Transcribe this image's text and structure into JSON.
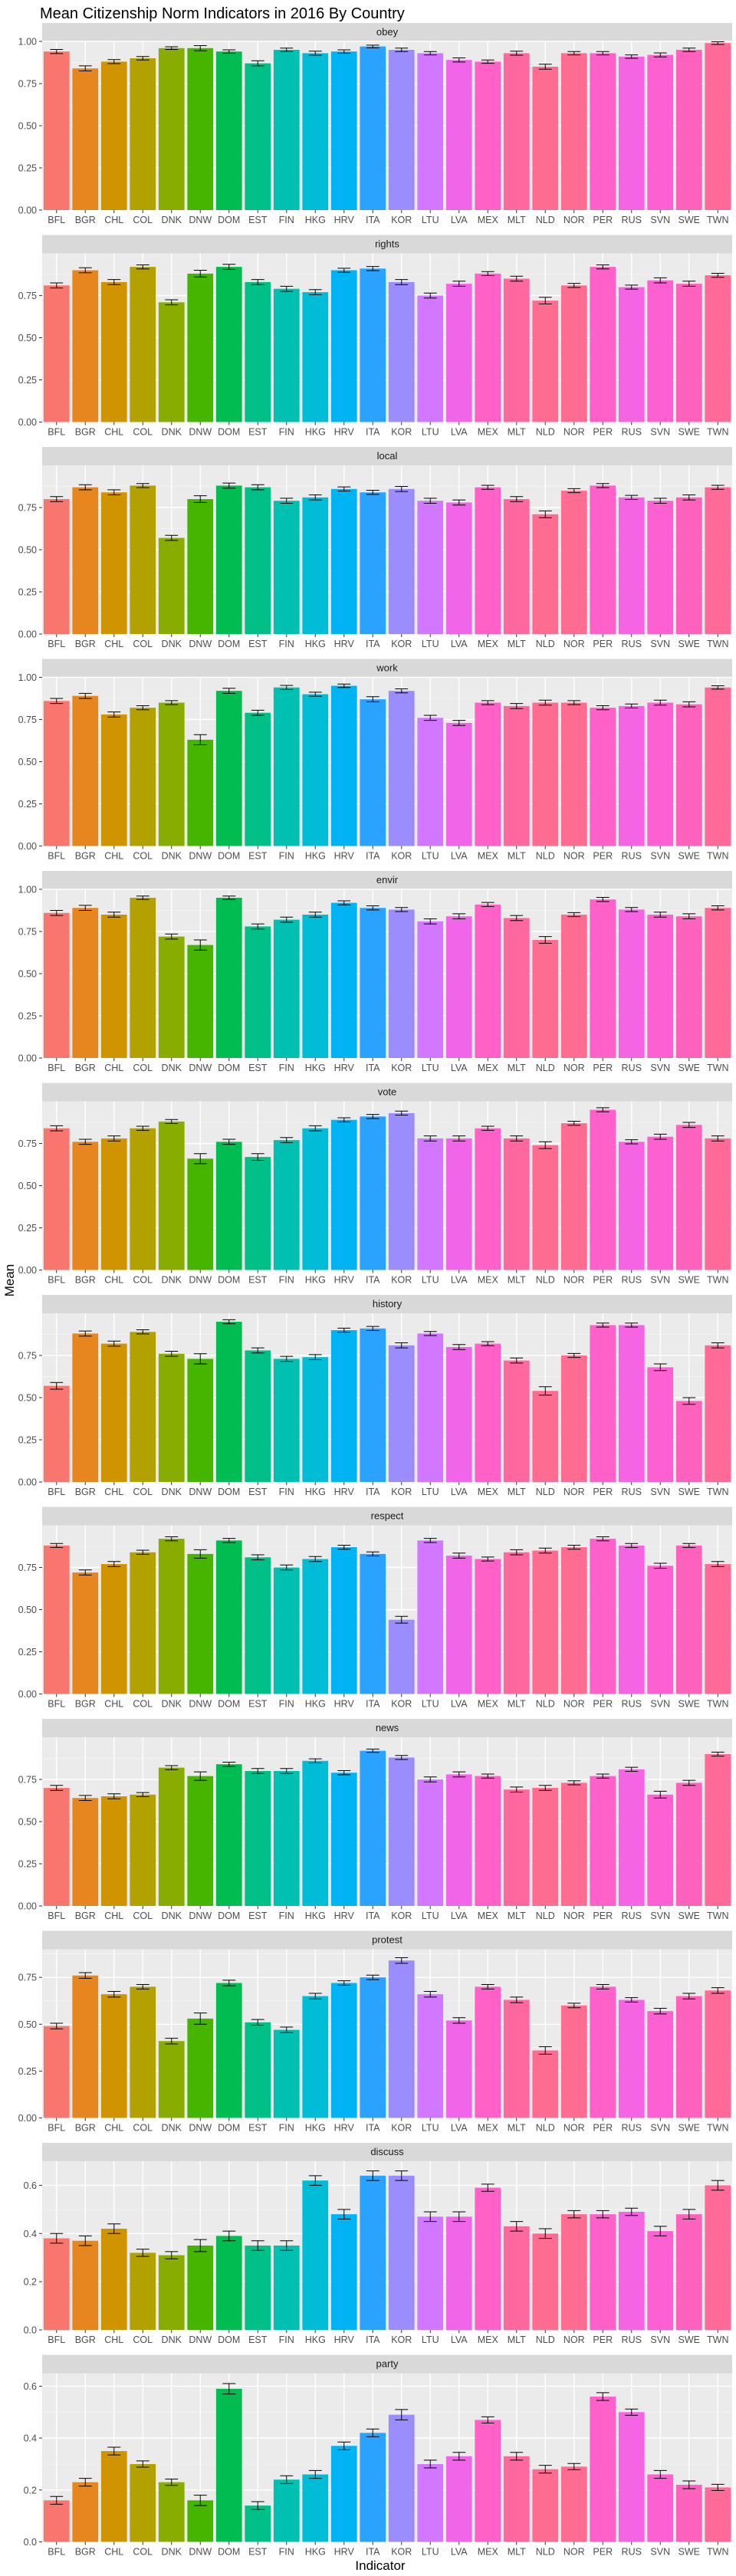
{
  "chart_data": {
    "type": "bar",
    "title": "Mean Citizenship Norm Indicators in 2016 By Country",
    "xlabel": "Indicator",
    "ylabel": "Mean",
    "grid": true,
    "legend": "none",
    "error_bars": true,
    "categories": [
      "BFL",
      "BGR",
      "CHL",
      "COL",
      "DNK",
      "DNW",
      "DOM",
      "EST",
      "FIN",
      "HKG",
      "HRV",
      "ITA",
      "KOR",
      "LTU",
      "LVA",
      "MEX",
      "MLT",
      "NLD",
      "NOR",
      "PER",
      "RUS",
      "SVN",
      "SWE",
      "TWN"
    ],
    "category_colors": [
      "#F8766D",
      "#E7851E",
      "#D09400",
      "#B2A100",
      "#89AC00",
      "#45B500",
      "#00BC51",
      "#00C087",
      "#00C0B2",
      "#00BCD6",
      "#00B3F2",
      "#29A3FF",
      "#9C8DFF",
      "#D277FF",
      "#F166E8",
      "#FF61C7",
      "#FF689E",
      "#FF6C91",
      "#FF6C91",
      "#FF61C9",
      "#F564E3",
      "#FD61D1",
      "#FF62BC",
      "#FF6A98"
    ],
    "panels": [
      {
        "label": "obey",
        "ylim": [
          0,
          1.0
        ],
        "yticks": [
          "0.00",
          "0.25",
          "0.50",
          "0.75",
          "1.00"
        ],
        "tick_values": [
          0,
          0.25,
          0.5,
          0.75,
          1.0
        ],
        "values": [
          0.94,
          0.84,
          0.88,
          0.9,
          0.96,
          0.96,
          0.94,
          0.87,
          0.95,
          0.93,
          0.94,
          0.97,
          0.95,
          0.93,
          0.89,
          0.88,
          0.93,
          0.85,
          0.93,
          0.93,
          0.91,
          0.92,
          0.95,
          0.99
        ],
        "errors": [
          0.012,
          0.015,
          0.012,
          0.01,
          0.008,
          0.015,
          0.01,
          0.015,
          0.01,
          0.012,
          0.01,
          0.008,
          0.01,
          0.01,
          0.012,
          0.01,
          0.012,
          0.015,
          0.01,
          0.01,
          0.01,
          0.012,
          0.01,
          0.008
        ]
      },
      {
        "label": "rights",
        "ylim": [
          0,
          1.0
        ],
        "yticks": [
          "0.00",
          "0.25",
          "0.50",
          "0.75"
        ],
        "tick_values": [
          0,
          0.25,
          0.5,
          0.75
        ],
        "values": [
          0.81,
          0.9,
          0.83,
          0.92,
          0.71,
          0.88,
          0.92,
          0.83,
          0.79,
          0.77,
          0.9,
          0.91,
          0.83,
          0.75,
          0.82,
          0.88,
          0.85,
          0.72,
          0.81,
          0.92,
          0.8,
          0.84,
          0.82,
          0.87
        ],
        "errors": [
          0.015,
          0.015,
          0.015,
          0.012,
          0.015,
          0.02,
          0.015,
          0.015,
          0.015,
          0.015,
          0.012,
          0.012,
          0.015,
          0.015,
          0.015,
          0.012,
          0.015,
          0.02,
          0.012,
          0.012,
          0.012,
          0.015,
          0.015,
          0.012
        ]
      },
      {
        "label": "local",
        "ylim": [
          0,
          1.0
        ],
        "yticks": [
          "0.00",
          "0.25",
          "0.50",
          "0.75"
        ],
        "tick_values": [
          0,
          0.25,
          0.5,
          0.75
        ],
        "values": [
          0.8,
          0.87,
          0.84,
          0.88,
          0.57,
          0.8,
          0.88,
          0.87,
          0.79,
          0.81,
          0.86,
          0.84,
          0.86,
          0.79,
          0.78,
          0.87,
          0.8,
          0.71,
          0.85,
          0.88,
          0.81,
          0.79,
          0.81,
          0.87
        ],
        "errors": [
          0.015,
          0.015,
          0.015,
          0.012,
          0.015,
          0.02,
          0.015,
          0.015,
          0.015,
          0.015,
          0.012,
          0.012,
          0.015,
          0.015,
          0.015,
          0.012,
          0.015,
          0.02,
          0.012,
          0.012,
          0.012,
          0.015,
          0.015,
          0.012
        ]
      },
      {
        "label": "work",
        "ylim": [
          0,
          1.0
        ],
        "yticks": [
          "0.00",
          "0.25",
          "0.50",
          "0.75",
          "1.00"
        ],
        "tick_values": [
          0,
          0.25,
          0.5,
          0.75,
          1.0
        ],
        "values": [
          0.86,
          0.89,
          0.78,
          0.82,
          0.85,
          0.63,
          0.92,
          0.79,
          0.94,
          0.9,
          0.95,
          0.87,
          0.92,
          0.76,
          0.73,
          0.85,
          0.83,
          0.85,
          0.85,
          0.82,
          0.83,
          0.85,
          0.84,
          0.94
        ],
        "errors": [
          0.015,
          0.015,
          0.015,
          0.012,
          0.012,
          0.03,
          0.015,
          0.015,
          0.012,
          0.012,
          0.01,
          0.015,
          0.012,
          0.015,
          0.015,
          0.012,
          0.015,
          0.015,
          0.012,
          0.012,
          0.012,
          0.015,
          0.015,
          0.01
        ]
      },
      {
        "label": "envir",
        "ylim": [
          0,
          1.0
        ],
        "yticks": [
          "0.00",
          "0.25",
          "0.50",
          "0.75",
          "1.00"
        ],
        "tick_values": [
          0,
          0.25,
          0.5,
          0.75,
          1.0
        ],
        "values": [
          0.86,
          0.89,
          0.85,
          0.95,
          0.72,
          0.67,
          0.95,
          0.78,
          0.82,
          0.85,
          0.92,
          0.89,
          0.88,
          0.81,
          0.84,
          0.91,
          0.83,
          0.7,
          0.85,
          0.94,
          0.88,
          0.85,
          0.84,
          0.89
        ],
        "errors": [
          0.015,
          0.015,
          0.015,
          0.01,
          0.015,
          0.03,
          0.01,
          0.015,
          0.015,
          0.015,
          0.012,
          0.012,
          0.012,
          0.015,
          0.015,
          0.012,
          0.015,
          0.02,
          0.012,
          0.012,
          0.012,
          0.015,
          0.015,
          0.012
        ]
      },
      {
        "label": "vote",
        "ylim": [
          0,
          1.0
        ],
        "yticks": [
          "0.00",
          "0.25",
          "0.50",
          "0.75"
        ],
        "tick_values": [
          0,
          0.25,
          0.5,
          0.75
        ],
        "values": [
          0.84,
          0.76,
          0.78,
          0.84,
          0.88,
          0.66,
          0.76,
          0.67,
          0.77,
          0.84,
          0.89,
          0.91,
          0.93,
          0.78,
          0.78,
          0.84,
          0.78,
          0.74,
          0.87,
          0.95,
          0.76,
          0.79,
          0.86,
          0.78
        ],
        "errors": [
          0.015,
          0.015,
          0.015,
          0.012,
          0.012,
          0.03,
          0.015,
          0.02,
          0.015,
          0.015,
          0.012,
          0.012,
          0.012,
          0.015,
          0.015,
          0.012,
          0.015,
          0.02,
          0.012,
          0.012,
          0.012,
          0.015,
          0.015,
          0.015
        ]
      },
      {
        "label": "history",
        "ylim": [
          0,
          1.0
        ],
        "yticks": [
          "0.00",
          "0.25",
          "0.50",
          "0.75"
        ],
        "tick_values": [
          0,
          0.25,
          0.5,
          0.75
        ],
        "values": [
          0.57,
          0.88,
          0.82,
          0.89,
          0.76,
          0.73,
          0.95,
          0.78,
          0.73,
          0.74,
          0.9,
          0.91,
          0.81,
          0.88,
          0.8,
          0.82,
          0.72,
          0.54,
          0.75,
          0.93,
          0.93,
          0.68,
          0.48,
          0.81
        ],
        "errors": [
          0.02,
          0.015,
          0.015,
          0.012,
          0.015,
          0.03,
          0.012,
          0.015,
          0.015,
          0.015,
          0.012,
          0.012,
          0.015,
          0.012,
          0.015,
          0.012,
          0.015,
          0.025,
          0.012,
          0.012,
          0.012,
          0.02,
          0.02,
          0.015
        ]
      },
      {
        "label": "respect",
        "ylim": [
          0,
          1.0
        ],
        "yticks": [
          "0.00",
          "0.25",
          "0.50",
          "0.75"
        ],
        "tick_values": [
          0,
          0.25,
          0.5,
          0.75
        ],
        "values": [
          0.88,
          0.72,
          0.77,
          0.84,
          0.92,
          0.83,
          0.91,
          0.81,
          0.75,
          0.8,
          0.87,
          0.83,
          0.44,
          0.91,
          0.82,
          0.8,
          0.84,
          0.85,
          0.87,
          0.92,
          0.88,
          0.76,
          0.88,
          0.77
        ],
        "errors": [
          0.012,
          0.015,
          0.015,
          0.012,
          0.012,
          0.025,
          0.012,
          0.015,
          0.015,
          0.015,
          0.012,
          0.012,
          0.02,
          0.012,
          0.015,
          0.012,
          0.015,
          0.015,
          0.012,
          0.012,
          0.012,
          0.015,
          0.012,
          0.015
        ]
      },
      {
        "label": "news",
        "ylim": [
          0,
          1.0
        ],
        "yticks": [
          "0.00",
          "0.25",
          "0.50",
          "0.75"
        ],
        "tick_values": [
          0,
          0.25,
          0.5,
          0.75
        ],
        "values": [
          0.7,
          0.64,
          0.65,
          0.66,
          0.82,
          0.77,
          0.84,
          0.8,
          0.8,
          0.86,
          0.79,
          0.92,
          0.88,
          0.75,
          0.78,
          0.77,
          0.69,
          0.7,
          0.73,
          0.77,
          0.81,
          0.66,
          0.73,
          0.9
        ],
        "errors": [
          0.015,
          0.015,
          0.015,
          0.012,
          0.012,
          0.025,
          0.012,
          0.015,
          0.015,
          0.012,
          0.012,
          0.01,
          0.012,
          0.015,
          0.015,
          0.012,
          0.015,
          0.015,
          0.012,
          0.012,
          0.012,
          0.02,
          0.015,
          0.012
        ]
      },
      {
        "label": "protest",
        "ylim": [
          0,
          0.9
        ],
        "yticks": [
          "0.00",
          "0.25",
          "0.50",
          "0.75"
        ],
        "tick_values": [
          0,
          0.25,
          0.5,
          0.75
        ],
        "values": [
          0.49,
          0.76,
          0.66,
          0.7,
          0.41,
          0.53,
          0.72,
          0.51,
          0.47,
          0.65,
          0.72,
          0.75,
          0.84,
          0.66,
          0.52,
          0.7,
          0.63,
          0.36,
          0.6,
          0.7,
          0.63,
          0.57,
          0.65,
          0.68
        ],
        "errors": [
          0.015,
          0.015,
          0.015,
          0.012,
          0.015,
          0.03,
          0.015,
          0.015,
          0.015,
          0.015,
          0.012,
          0.012,
          0.015,
          0.015,
          0.015,
          0.012,
          0.015,
          0.02,
          0.012,
          0.012,
          0.012,
          0.015,
          0.015,
          0.015
        ]
      },
      {
        "label": "discuss",
        "ylim": [
          0,
          0.7
        ],
        "yticks": [
          "0.0",
          "0.2",
          "0.4",
          "0.6"
        ],
        "tick_values": [
          0,
          0.2,
          0.4,
          0.6
        ],
        "values": [
          0.38,
          0.37,
          0.42,
          0.32,
          0.31,
          0.35,
          0.39,
          0.35,
          0.35,
          0.62,
          0.48,
          0.64,
          0.64,
          0.47,
          0.47,
          0.59,
          0.43,
          0.4,
          0.48,
          0.48,
          0.49,
          0.41,
          0.48,
          0.6
        ],
        "errors": [
          0.02,
          0.02,
          0.02,
          0.015,
          0.015,
          0.025,
          0.02,
          0.02,
          0.02,
          0.02,
          0.02,
          0.02,
          0.02,
          0.02,
          0.02,
          0.015,
          0.02,
          0.02,
          0.015,
          0.015,
          0.015,
          0.02,
          0.02,
          0.02
        ]
      },
      {
        "label": "party",
        "ylim": [
          0,
          0.65
        ],
        "yticks": [
          "0.0",
          "0.2",
          "0.4",
          "0.6"
        ],
        "tick_values": [
          0,
          0.2,
          0.4,
          0.6
        ],
        "values": [
          0.16,
          0.23,
          0.35,
          0.3,
          0.23,
          0.16,
          0.59,
          0.14,
          0.24,
          0.26,
          0.37,
          0.42,
          0.49,
          0.3,
          0.33,
          0.47,
          0.33,
          0.28,
          0.29,
          0.56,
          0.5,
          0.26,
          0.22,
          0.21
        ],
        "errors": [
          0.015,
          0.015,
          0.015,
          0.012,
          0.012,
          0.02,
          0.02,
          0.015,
          0.015,
          0.015,
          0.015,
          0.015,
          0.02,
          0.015,
          0.015,
          0.012,
          0.015,
          0.015,
          0.012,
          0.015,
          0.012,
          0.015,
          0.015,
          0.012
        ]
      }
    ]
  }
}
